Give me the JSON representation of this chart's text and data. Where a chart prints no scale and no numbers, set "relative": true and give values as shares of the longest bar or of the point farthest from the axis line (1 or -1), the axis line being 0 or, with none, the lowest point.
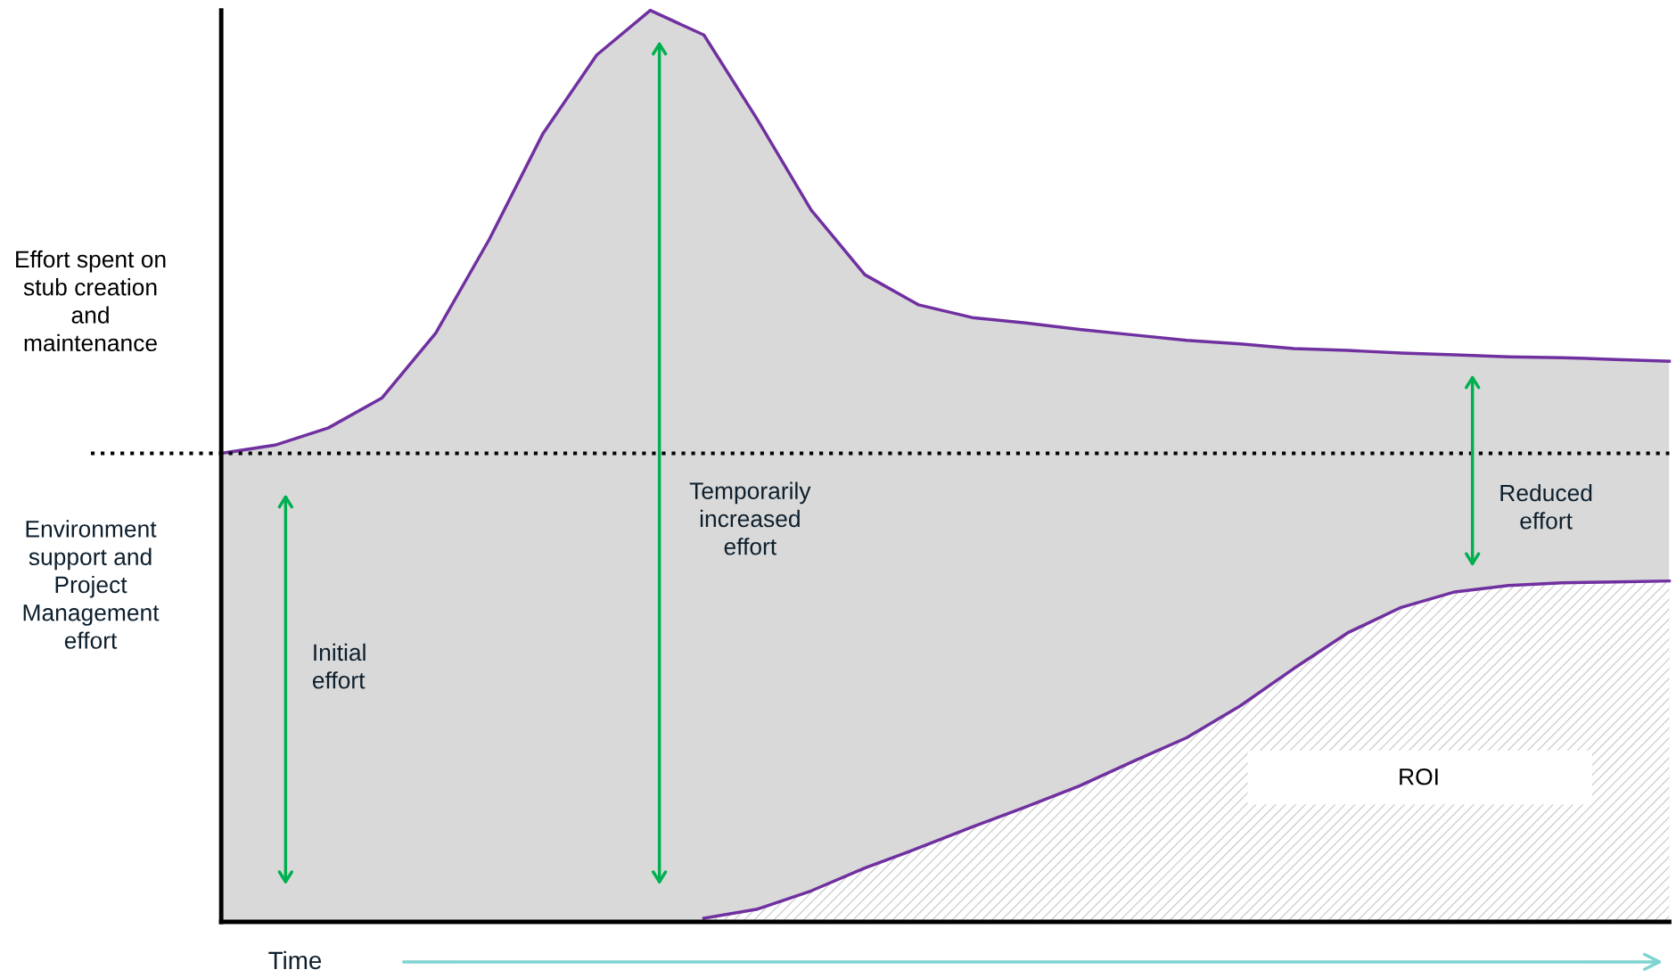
{
  "chart_data": {
    "type": "area",
    "relative": true,
    "xlabel": "Time",
    "ylabel": "Effort spent on\nstub creation\nand\nmaintenance",
    "categories": [
      null,
      null,
      null,
      null,
      null,
      null,
      null,
      null,
      null,
      null,
      null,
      null,
      null,
      null,
      null,
      null,
      null,
      null,
      null,
      null,
      null,
      null,
      null,
      null,
      null,
      null,
      null,
      null
    ],
    "series": [
      {
        "color": "#d9d9d9",
        "values": [
          0.514,
          0.523,
          0.542,
          0.575,
          0.646,
          0.749,
          0.865,
          0.951,
          1,
          0.973,
          0.88,
          0.781,
          0.71,
          0.677,
          0.663,
          0.657,
          0.65,
          0.644,
          0.638,
          0.634,
          0.629,
          0.627,
          0.624,
          0.622,
          0.62,
          0.619,
          0.617,
          0.615
        ]
      },
      {
        "color": "#ffffff",
        "values": [
          null,
          null,
          null,
          null,
          null,
          null,
          null,
          null,
          null,
          0.004,
          0.014,
          0.034,
          0.059,
          0.081,
          0.104,
          0.126,
          0.149,
          0.176,
          0.202,
          0.237,
          0.278,
          0.317,
          0.345,
          0.362,
          0.369,
          0.372,
          0.373,
          0.374
        ]
      }
    ],
    "ref_lines": [
      {
        "axis": "y",
        "value": 0.514,
        "color": "#000000",
        "line_style": "dotted"
      }
    ],
    "annotations": [
      "Environment\nsupport and\nProject\nManagement\neffort",
      "Initial\neffort",
      "Temporarily\nincreased\neffort",
      "Reduced\neffort",
      "ROI"
    ]
  }
}
